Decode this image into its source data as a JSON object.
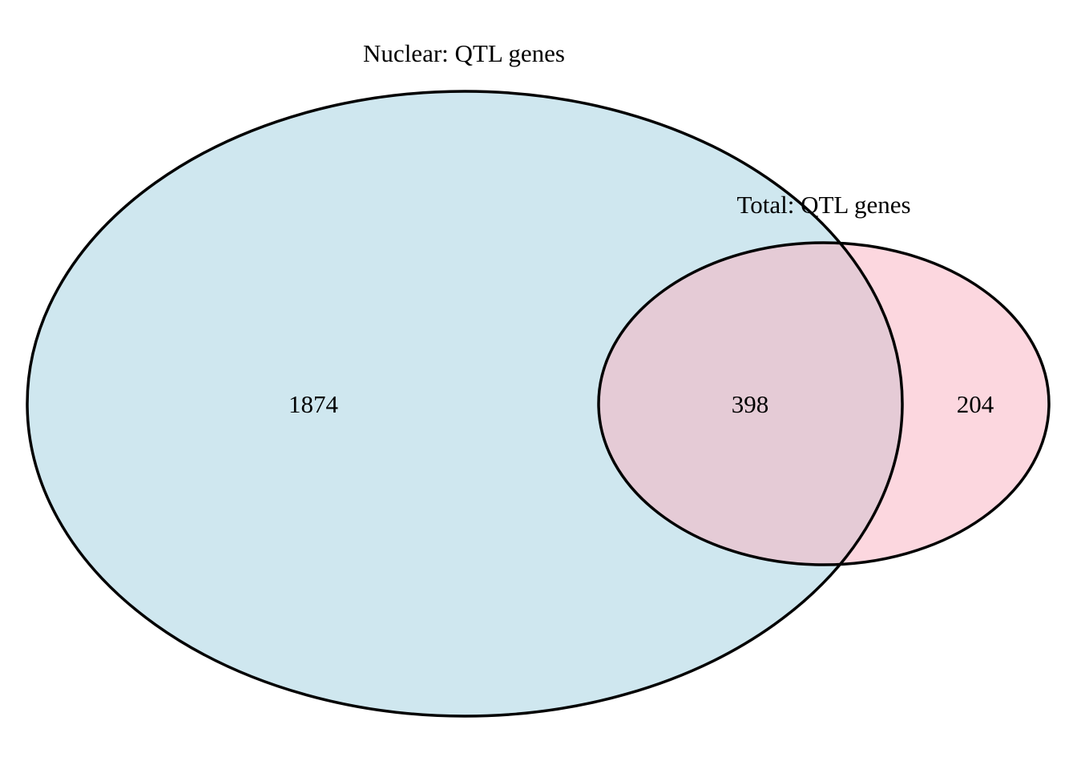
{
  "diagram": {
    "type": "venn",
    "sets": [
      {
        "id": "nuclear",
        "label": "Nuclear: QTL genes",
        "fill_color": "#cfe7ef"
      },
      {
        "id": "total",
        "label": "Total: QTL genes",
        "fill_color": "#fcd7df"
      }
    ],
    "regions": {
      "nuclear_only": "1874",
      "intersection": "398",
      "total_only": "204"
    },
    "intersection_color": "#e5cbd6",
    "outline_color": "#000000"
  }
}
